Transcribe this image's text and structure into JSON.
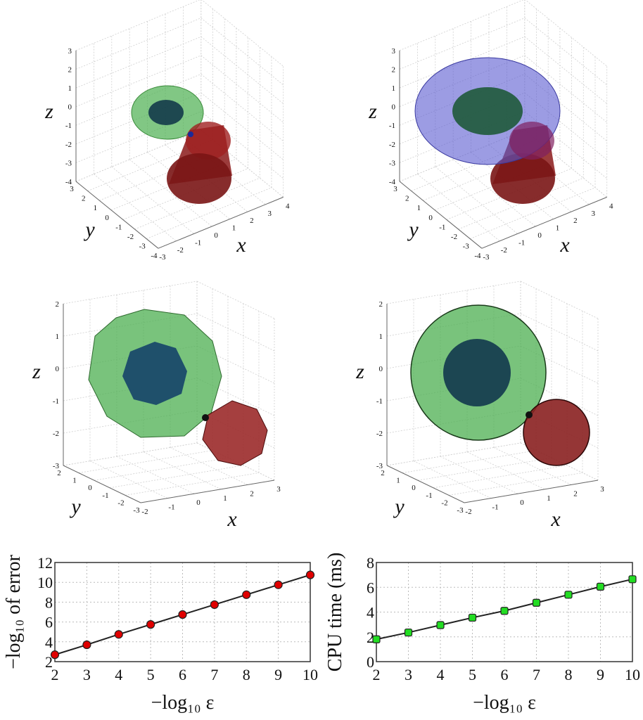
{
  "panels3d": [
    {
      "id": "top-left",
      "xlim": [
        -3,
        4
      ],
      "ylim": [
        -4,
        3
      ],
      "zlim": [
        -4,
        3
      ],
      "xticks": [
        "-3",
        "-2",
        "-1",
        "0",
        "1",
        "2",
        "3",
        "4"
      ],
      "yticks": [
        "3",
        "2",
        "1",
        "0",
        "-1",
        "-2",
        "-3",
        "-4"
      ],
      "zticks": [
        "3",
        "2",
        "1",
        "0",
        "-1",
        "-2",
        "-3",
        "-4"
      ],
      "xlabel": "x",
      "ylabel": "y",
      "zlabel": "z",
      "objects": [
        {
          "shape": "ellipsoid",
          "color": "#4caf50"
        },
        {
          "shape": "ellipsoid",
          "color": "#1a4a6a"
        },
        {
          "shape": "cylinder",
          "color": "#8b1a1a"
        }
      ]
    },
    {
      "id": "top-right",
      "xlim": [
        -3,
        4
      ],
      "ylim": [
        -4,
        3
      ],
      "zlim": [
        -4,
        3
      ],
      "xticks": [
        "-3",
        "-2",
        "-1",
        "0",
        "1",
        "2",
        "3",
        "4"
      ],
      "yticks": [
        "3",
        "2",
        "1",
        "0",
        "-1",
        "-2",
        "-3",
        "-4"
      ],
      "zticks": [
        "3",
        "2",
        "1",
        "0",
        "-1",
        "-2",
        "-3",
        "-4"
      ],
      "xlabel": "x",
      "ylabel": "y",
      "zlabel": "z",
      "objects": [
        {
          "shape": "ellipsoid",
          "color": "#4a4ab8"
        },
        {
          "shape": "ellipsoid",
          "color": "#1f5a3a"
        },
        {
          "shape": "cylinder",
          "color": "#8b1a1a"
        }
      ]
    },
    {
      "id": "middle-left",
      "xlim": [
        -2,
        3
      ],
      "ylim": [
        -3,
        2
      ],
      "zlim": [
        -3,
        2
      ],
      "xticks": [
        "-2",
        "-1",
        "0",
        "1",
        "2",
        "3"
      ],
      "yticks": [
        "2",
        "1",
        "0",
        "-1",
        "-2",
        "-3"
      ],
      "zticks": [
        "2",
        "1",
        "0",
        "-1",
        "-2",
        "-3"
      ],
      "xlabel": "x",
      "ylabel": "y",
      "zlabel": "z",
      "objects": [
        {
          "shape": "mesh-sphere",
          "color": "#4caf50"
        },
        {
          "shape": "mesh-sphere",
          "color": "#1a4a6a"
        },
        {
          "shape": "mesh-sphere",
          "color": "#9b2a2a"
        }
      ]
    },
    {
      "id": "middle-right",
      "xlim": [
        -2,
        3
      ],
      "ylim": [
        -3,
        2
      ],
      "zlim": [
        -3,
        2
      ],
      "xticks": [
        "-2",
        "-1",
        "0",
        "1",
        "2",
        "3"
      ],
      "yticks": [
        "2",
        "1",
        "0",
        "-1",
        "-2",
        "-3"
      ],
      "zticks": [
        "2",
        "1",
        "0",
        "-1",
        "-2",
        "-3"
      ],
      "xlabel": "x",
      "ylabel": "y",
      "zlabel": "z",
      "objects": [
        {
          "shape": "mesh-sphere",
          "color": "#4caf50"
        },
        {
          "shape": "mesh-sphere",
          "color": "#1a4a6a"
        },
        {
          "shape": "mesh-sphere",
          "color": "#9b2a2a"
        }
      ]
    }
  ],
  "chart_data": [
    {
      "type": "line",
      "x": [
        2,
        3,
        4,
        5,
        6,
        7,
        8,
        9,
        10
      ],
      "values": [
        2.7,
        3.7,
        4.75,
        5.75,
        6.75,
        7.75,
        8.75,
        9.75,
        10.75
      ],
      "xlabel": "−log₁₀ ε",
      "ylabel": "−log₁₀ of error",
      "xlim": [
        2,
        10
      ],
      "ylim": [
        2,
        12
      ],
      "xticks": [
        "2",
        "3",
        "4",
        "5",
        "6",
        "7",
        "8",
        "9",
        "10"
      ],
      "yticks": [
        "2",
        "4",
        "6",
        "8",
        "10",
        "12"
      ],
      "grid": true,
      "marker_color": "#e00000"
    },
    {
      "type": "line",
      "x": [
        2,
        3,
        4,
        5,
        6,
        7,
        8,
        9,
        10
      ],
      "values": [
        1.8,
        2.35,
        2.95,
        3.55,
        4.1,
        4.75,
        5.4,
        6.05,
        6.65
      ],
      "xlabel": "−log₁₀ ε",
      "ylabel": "CPU time (ms)",
      "xlim": [
        2,
        10
      ],
      "ylim": [
        0,
        8
      ],
      "xticks": [
        "2",
        "3",
        "4",
        "5",
        "6",
        "7",
        "8",
        "9",
        "10"
      ],
      "yticks": [
        "0",
        "2",
        "4",
        "6",
        "8"
      ],
      "grid": true,
      "marker_color": "#22dd22"
    }
  ]
}
